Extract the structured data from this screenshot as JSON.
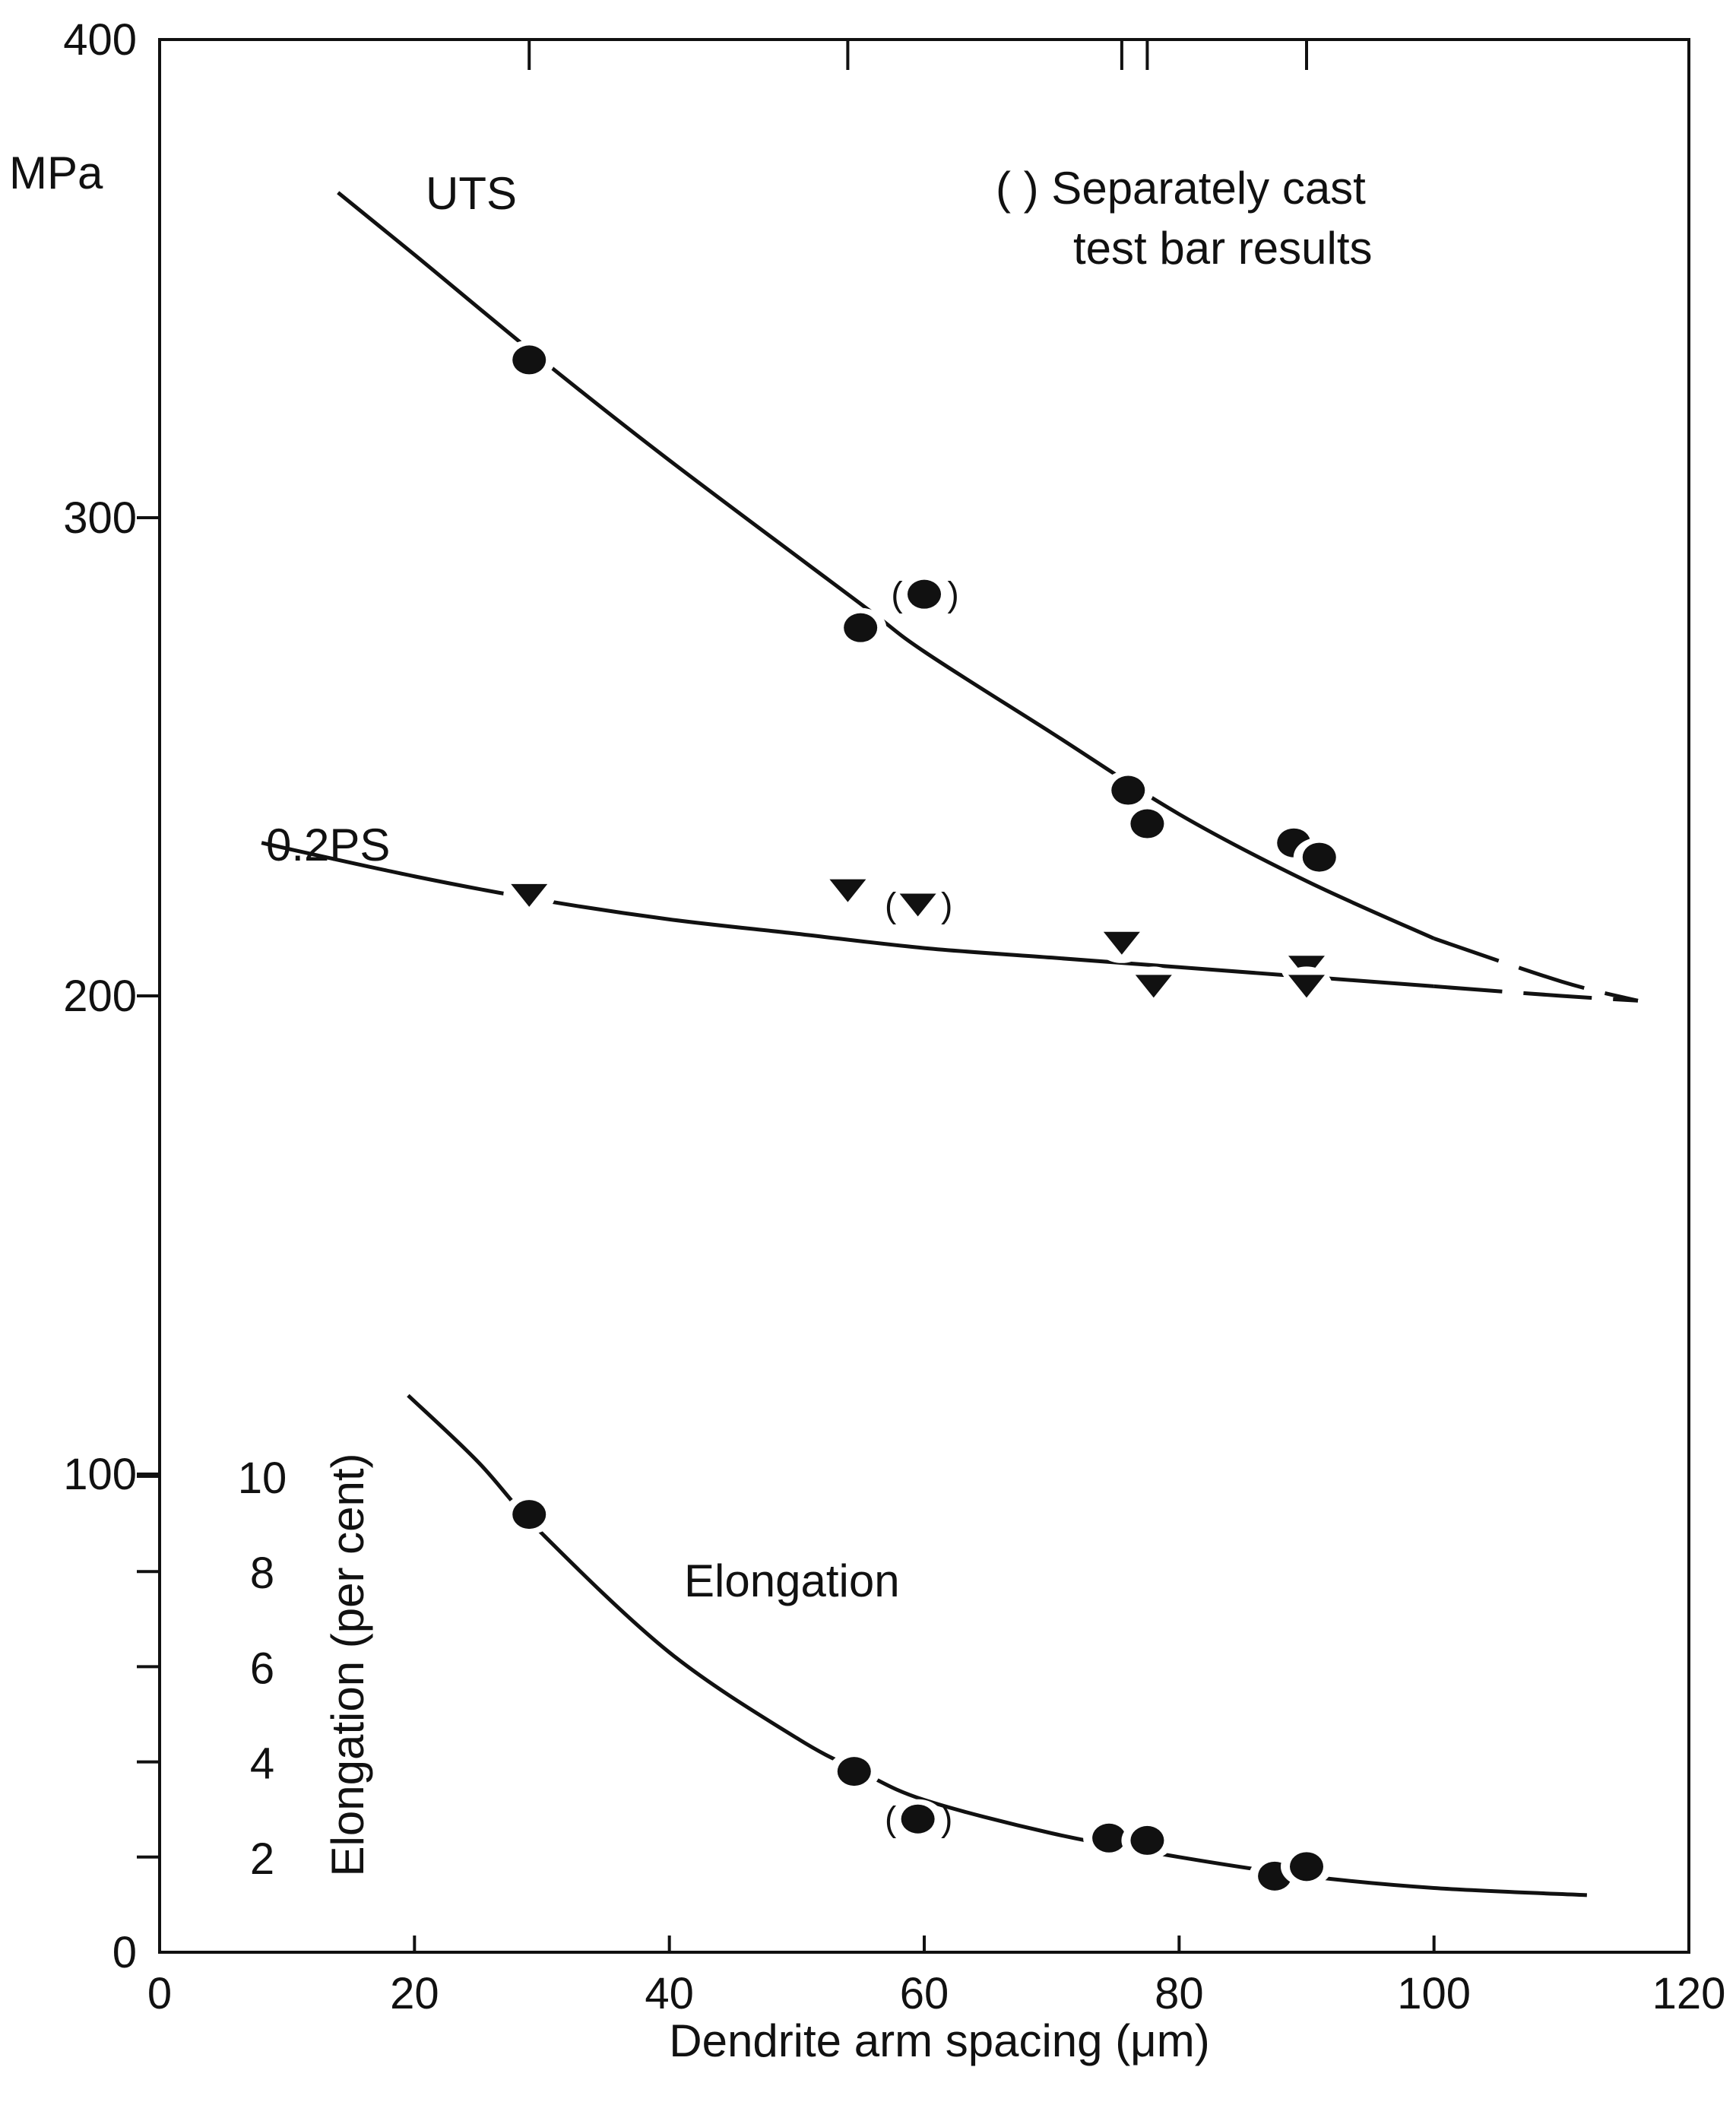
{
  "chart_data": {
    "type": "scatter",
    "title": "",
    "xlabel": "Dendrite arm spacing (μm)",
    "ylabel": "MPa",
    "y2label": "Elongation (per cent)",
    "xlim": [
      0,
      120
    ],
    "ylim": [
      0,
      400
    ],
    "y2lim": [
      0,
      10
    ],
    "x_ticks": [
      "0",
      "20",
      "40",
      "60",
      "80",
      "100",
      "120"
    ],
    "y_ticks": [
      "0",
      "100",
      "200",
      "300",
      "400"
    ],
    "y2_ticks": [
      "2",
      "4",
      "6",
      "8",
      "10"
    ],
    "note": [
      "( ) Separately cast",
      "test bar results"
    ],
    "series": [
      {
        "name": "UTS",
        "marker": "circle",
        "points": [
          {
            "x": 29,
            "y": 333,
            "separate": false
          },
          {
            "x": 55,
            "y": 277,
            "separate": false
          },
          {
            "x": 60,
            "y": 284,
            "separate": true
          },
          {
            "x": 76,
            "y": 243,
            "separate": false
          },
          {
            "x": 77.5,
            "y": 236,
            "separate": false
          },
          {
            "x": 89,
            "y": 232,
            "separate": false
          },
          {
            "x": 91,
            "y": 229,
            "separate": false
          }
        ],
        "curve": [
          [
            14,
            368
          ],
          [
            20,
            355
          ],
          [
            30,
            333
          ],
          [
            40,
            312
          ],
          [
            55,
            282
          ],
          [
            60,
            272
          ],
          [
            70,
            255
          ],
          [
            80,
            238
          ],
          [
            90,
            224
          ],
          [
            100,
            212
          ],
          [
            110,
            203
          ],
          [
            116,
            199
          ]
        ],
        "dashed_from_x": 100
      },
      {
        "name": "0.2PS",
        "marker": "triangle-down",
        "points": [
          {
            "x": 29,
            "y": 221,
            "separate": false
          },
          {
            "x": 54,
            "y": 222,
            "separate": false
          },
          {
            "x": 59.5,
            "y": 219,
            "separate": true
          },
          {
            "x": 75.5,
            "y": 211,
            "separate": false
          },
          {
            "x": 78,
            "y": 202,
            "separate": false
          },
          {
            "x": 90,
            "y": 206,
            "separate": false
          },
          {
            "x": 90,
            "y": 202,
            "separate": false
          }
        ],
        "curve": [
          [
            8,
            232
          ],
          [
            20,
            225
          ],
          [
            30,
            220
          ],
          [
            40,
            216
          ],
          [
            50,
            213
          ],
          [
            60,
            210
          ],
          [
            70,
            208
          ],
          [
            80,
            206
          ],
          [
            90,
            204
          ],
          [
            100,
            202
          ],
          [
            110,
            200
          ],
          [
            116,
            199
          ]
        ],
        "dashed_from_x": 95
      },
      {
        "name": "Elongation",
        "axis": "y2",
        "marker": "circle",
        "points": [
          {
            "x": 29,
            "y": 9.2,
            "separate": false
          },
          {
            "x": 54.5,
            "y": 3.8,
            "separate": false
          },
          {
            "x": 59.5,
            "y": 2.8,
            "separate": true
          },
          {
            "x": 74.5,
            "y": 2.4,
            "separate": false
          },
          {
            "x": 77.5,
            "y": 2.35,
            "separate": false
          },
          {
            "x": 87.5,
            "y": 1.6,
            "separate": false
          },
          {
            "x": 90,
            "y": 1.8,
            "separate": false
          }
        ],
        "curve": [
          [
            19.5,
            11.7
          ],
          [
            25,
            10.3
          ],
          [
            30,
            8.8
          ],
          [
            40,
            6.3
          ],
          [
            50,
            4.5
          ],
          [
            55,
            3.8
          ],
          [
            60,
            3.2
          ],
          [
            70,
            2.5
          ],
          [
            80,
            2.0
          ],
          [
            90,
            1.6
          ],
          [
            100,
            1.35
          ],
          [
            112,
            1.2
          ]
        ],
        "dashed_from_x": null
      }
    ]
  }
}
